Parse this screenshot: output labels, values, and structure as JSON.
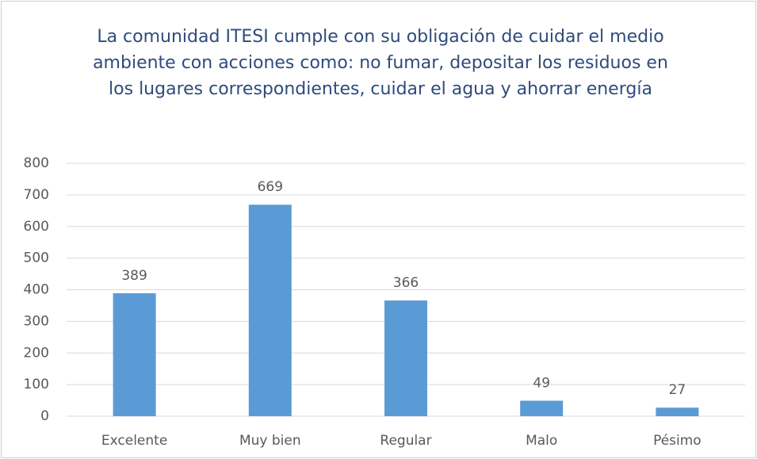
{
  "chart_data": {
    "type": "bar",
    "title": "La comunidad ITESI cumple con su obligación de cuidar el medio ambiente con acciones como: no fumar, depositar los residuos en los lugares correspondientes, cuidar el agua y ahorrar energía",
    "categories": [
      "Excelente",
      "Muy bien",
      "Regular",
      "Malo",
      "Pésimo"
    ],
    "values": [
      389,
      669,
      366,
      49,
      27
    ],
    "color": "#5b9bd5",
    "ylim": [
      0,
      800
    ],
    "yticks": [
      0,
      100,
      200,
      300,
      400,
      500,
      600,
      700,
      800
    ],
    "grid": true
  }
}
